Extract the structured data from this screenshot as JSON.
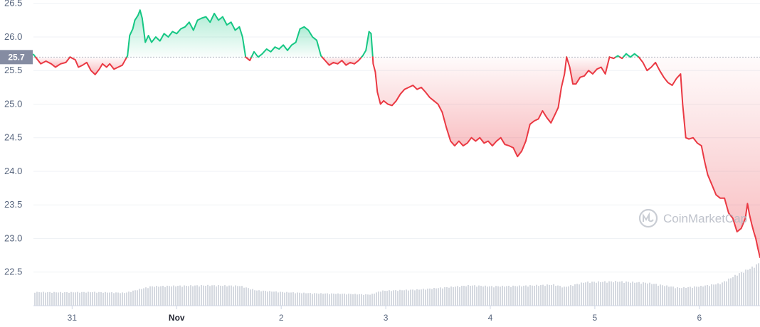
{
  "chart_data": {
    "type": "line",
    "reference": {
      "value": 25.7,
      "label": "25.7"
    },
    "ylim": [
      22.0,
      26.55
    ],
    "yticks": [
      "26.5",
      "26.0",
      "25.5",
      "25.0",
      "24.5",
      "24.0",
      "23.5",
      "23.0",
      "22.5"
    ],
    "ytick_values": [
      26.5,
      26.0,
      25.5,
      25.0,
      24.5,
      24.0,
      23.5,
      23.0,
      22.5
    ],
    "xlim": [
      -0.37,
      6.58
    ],
    "xticks": [
      {
        "label": "31",
        "x": 0,
        "bold": false
      },
      {
        "label": "Nov",
        "x": 1,
        "bold": true
      },
      {
        "label": "2",
        "x": 2,
        "bold": false
      },
      {
        "label": "3",
        "x": 3,
        "bold": false
      },
      {
        "label": "4",
        "x": 4,
        "bold": false
      },
      {
        "label": "5",
        "x": 5,
        "bold": false
      },
      {
        "label": "6",
        "x": 6,
        "bold": false
      }
    ],
    "series": [
      {
        "values": [
          [
            -0.37,
            25.74
          ],
          [
            -0.34,
            25.68
          ],
          [
            -0.3,
            25.6
          ],
          [
            -0.25,
            25.64
          ],
          [
            -0.2,
            25.6
          ],
          [
            -0.16,
            25.55
          ],
          [
            -0.11,
            25.6
          ],
          [
            -0.06,
            25.62
          ],
          [
            -0.02,
            25.7
          ],
          [
            0.03,
            25.66
          ],
          [
            0.06,
            25.55
          ],
          [
            0.1,
            25.58
          ],
          [
            0.14,
            25.62
          ],
          [
            0.18,
            25.5
          ],
          [
            0.22,
            25.44
          ],
          [
            0.26,
            25.52
          ],
          [
            0.29,
            25.6
          ],
          [
            0.33,
            25.55
          ],
          [
            0.36,
            25.6
          ],
          [
            0.4,
            25.52
          ],
          [
            0.44,
            25.55
          ],
          [
            0.48,
            25.58
          ],
          [
            0.53,
            25.72
          ],
          [
            0.55,
            26.02
          ],
          [
            0.58,
            26.12
          ],
          [
            0.6,
            26.25
          ],
          [
            0.63,
            26.32
          ],
          [
            0.65,
            26.4
          ],
          [
            0.67,
            26.28
          ],
          [
            0.7,
            25.92
          ],
          [
            0.73,
            26.02
          ],
          [
            0.76,
            25.92
          ],
          [
            0.8,
            26.0
          ],
          [
            0.84,
            25.94
          ],
          [
            0.88,
            26.05
          ],
          [
            0.92,
            26.0
          ],
          [
            0.96,
            26.08
          ],
          [
            1.0,
            26.05
          ],
          [
            1.04,
            26.12
          ],
          [
            1.08,
            26.15
          ],
          [
            1.12,
            26.22
          ],
          [
            1.16,
            26.1
          ],
          [
            1.2,
            26.25
          ],
          [
            1.24,
            26.28
          ],
          [
            1.28,
            26.3
          ],
          [
            1.32,
            26.22
          ],
          [
            1.36,
            26.35
          ],
          [
            1.4,
            26.25
          ],
          [
            1.44,
            26.3
          ],
          [
            1.48,
            26.18
          ],
          [
            1.52,
            26.22
          ],
          [
            1.56,
            26.1
          ],
          [
            1.6,
            26.15
          ],
          [
            1.63,
            26.0
          ],
          [
            1.66,
            25.7
          ],
          [
            1.7,
            25.65
          ],
          [
            1.74,
            25.78
          ],
          [
            1.78,
            25.7
          ],
          [
            1.82,
            25.75
          ],
          [
            1.86,
            25.82
          ],
          [
            1.9,
            25.78
          ],
          [
            1.94,
            25.85
          ],
          [
            1.98,
            25.82
          ],
          [
            2.02,
            25.88
          ],
          [
            2.06,
            25.8
          ],
          [
            2.1,
            25.88
          ],
          [
            2.14,
            25.92
          ],
          [
            2.18,
            26.12
          ],
          [
            2.22,
            26.15
          ],
          [
            2.26,
            26.1
          ],
          [
            2.3,
            26.0
          ],
          [
            2.34,
            25.95
          ],
          [
            2.38,
            25.72
          ],
          [
            2.42,
            25.65
          ],
          [
            2.46,
            25.58
          ],
          [
            2.5,
            25.62
          ],
          [
            2.54,
            25.6
          ],
          [
            2.58,
            25.65
          ],
          [
            2.62,
            25.58
          ],
          [
            2.66,
            25.62
          ],
          [
            2.7,
            25.6
          ],
          [
            2.74,
            25.65
          ],
          [
            2.78,
            25.72
          ],
          [
            2.81,
            25.8
          ],
          [
            2.84,
            26.08
          ],
          [
            2.86,
            26.05
          ],
          [
            2.88,
            25.6
          ],
          [
            2.9,
            25.48
          ],
          [
            2.92,
            25.18
          ],
          [
            2.95,
            25.0
          ],
          [
            2.98,
            25.05
          ],
          [
            3.02,
            25.0
          ],
          [
            3.06,
            24.98
          ],
          [
            3.1,
            25.05
          ],
          [
            3.14,
            25.15
          ],
          [
            3.18,
            25.22
          ],
          [
            3.22,
            25.25
          ],
          [
            3.26,
            25.28
          ],
          [
            3.3,
            25.22
          ],
          [
            3.34,
            25.25
          ],
          [
            3.38,
            25.18
          ],
          [
            3.42,
            25.1
          ],
          [
            3.46,
            25.05
          ],
          [
            3.5,
            25.0
          ],
          [
            3.54,
            24.88
          ],
          [
            3.58,
            24.65
          ],
          [
            3.62,
            24.45
          ],
          [
            3.66,
            24.38
          ],
          [
            3.7,
            24.45
          ],
          [
            3.74,
            24.38
          ],
          [
            3.78,
            24.42
          ],
          [
            3.82,
            24.5
          ],
          [
            3.86,
            24.45
          ],
          [
            3.9,
            24.5
          ],
          [
            3.94,
            24.42
          ],
          [
            3.98,
            24.45
          ],
          [
            4.02,
            24.38
          ],
          [
            4.06,
            24.45
          ],
          [
            4.1,
            24.5
          ],
          [
            4.14,
            24.4
          ],
          [
            4.18,
            24.38
          ],
          [
            4.22,
            24.35
          ],
          [
            4.26,
            24.22
          ],
          [
            4.3,
            24.3
          ],
          [
            4.34,
            24.45
          ],
          [
            4.38,
            24.7
          ],
          [
            4.42,
            24.75
          ],
          [
            4.46,
            24.78
          ],
          [
            4.5,
            24.9
          ],
          [
            4.54,
            24.8
          ],
          [
            4.58,
            24.72
          ],
          [
            4.62,
            24.85
          ],
          [
            4.65,
            24.95
          ],
          [
            4.68,
            25.25
          ],
          [
            4.71,
            25.45
          ],
          [
            4.73,
            25.7
          ],
          [
            4.76,
            25.55
          ],
          [
            4.79,
            25.3
          ],
          [
            4.82,
            25.3
          ],
          [
            4.86,
            25.4
          ],
          [
            4.9,
            25.42
          ],
          [
            4.94,
            25.5
          ],
          [
            4.98,
            25.45
          ],
          [
            5.02,
            25.52
          ],
          [
            5.06,
            25.55
          ],
          [
            5.1,
            25.45
          ],
          [
            5.14,
            25.7
          ],
          [
            5.18,
            25.68
          ],
          [
            5.22,
            25.72
          ],
          [
            5.26,
            25.68
          ],
          [
            5.3,
            25.75
          ],
          [
            5.34,
            25.7
          ],
          [
            5.38,
            25.75
          ],
          [
            5.42,
            25.7
          ],
          [
            5.46,
            25.62
          ],
          [
            5.5,
            25.5
          ],
          [
            5.54,
            25.55
          ],
          [
            5.58,
            25.62
          ],
          [
            5.62,
            25.5
          ],
          [
            5.66,
            25.4
          ],
          [
            5.7,
            25.32
          ],
          [
            5.74,
            25.28
          ],
          [
            5.78,
            25.38
          ],
          [
            5.82,
            25.45
          ],
          [
            5.84,
            25.0
          ],
          [
            5.87,
            24.5
          ],
          [
            5.9,
            24.48
          ],
          [
            5.94,
            24.5
          ],
          [
            5.98,
            24.42
          ],
          [
            6.02,
            24.38
          ],
          [
            6.05,
            24.15
          ],
          [
            6.08,
            23.95
          ],
          [
            6.12,
            23.8
          ],
          [
            6.16,
            23.65
          ],
          [
            6.2,
            23.6
          ],
          [
            6.24,
            23.6
          ],
          [
            6.28,
            23.38
          ],
          [
            6.32,
            23.3
          ],
          [
            6.36,
            23.1
          ],
          [
            6.4,
            23.15
          ],
          [
            6.44,
            23.3
          ],
          [
            6.46,
            23.52
          ],
          [
            6.48,
            23.35
          ],
          [
            6.5,
            23.22
          ],
          [
            6.52,
            23.1
          ],
          [
            6.54,
            23.0
          ],
          [
            6.56,
            22.85
          ],
          [
            6.58,
            22.72
          ]
        ]
      }
    ],
    "colors": {
      "up": "#16c784",
      "down": "#ea3943",
      "reference": "#b3b7c2",
      "volume": "#d5d9e0",
      "grid": "#eff2f5"
    },
    "volume_bars": [
      [
        -0.37,
        0.55
      ],
      [
        -0.1,
        0.54
      ],
      [
        0.2,
        0.55
      ],
      [
        0.5,
        0.52
      ],
      [
        0.75,
        0.78
      ],
      [
        1.0,
        0.8
      ],
      [
        1.3,
        0.82
      ],
      [
        1.6,
        0.8
      ],
      [
        1.75,
        0.62
      ],
      [
        2.0,
        0.55
      ],
      [
        2.3,
        0.5
      ],
      [
        2.6,
        0.48
      ],
      [
        2.85,
        0.45
      ],
      [
        2.95,
        0.6
      ],
      [
        3.3,
        0.65
      ],
      [
        3.6,
        0.75
      ],
      [
        3.8,
        0.82
      ],
      [
        4.0,
        0.78
      ],
      [
        4.3,
        0.8
      ],
      [
        4.6,
        0.85
      ],
      [
        4.7,
        0.75
      ],
      [
        4.9,
        0.95
      ],
      [
        5.2,
        0.98
      ],
      [
        5.5,
        0.92
      ],
      [
        5.8,
        0.72
      ],
      [
        6.0,
        0.78
      ],
      [
        6.2,
        0.9
      ],
      [
        6.35,
        1.25
      ],
      [
        6.5,
        1.55
      ],
      [
        6.58,
        1.75
      ]
    ]
  },
  "watermark": {
    "text": "CoinMarketCap",
    "icon": "coinmarketcap-logo-icon"
  }
}
